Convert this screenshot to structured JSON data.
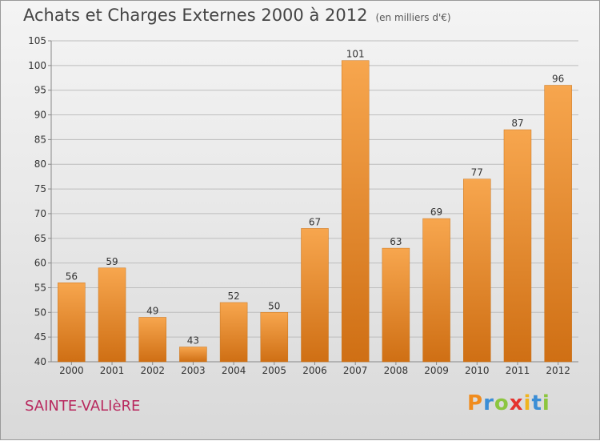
{
  "header": {
    "title": "Achats et Charges Externes 2000 à 2012",
    "subtitle": "(en milliers d'€)"
  },
  "footer": {
    "commune": "SAINTE-VALIèRE",
    "brand": {
      "letters": [
        "P",
        "r",
        "o",
        "x",
        "i",
        "t",
        "i"
      ],
      "colors": [
        "#f08c1e",
        "#3b8ed6",
        "#8cc63f",
        "#e5322e",
        "#f0b41e",
        "#3b8ed6",
        "#8cc63f"
      ]
    }
  },
  "colors": {
    "bar_light": "#f7a64e",
    "bar_dark": "#cf6f14",
    "axis_text": "#333333",
    "grid": "#bdbdbd"
  },
  "chart_data": {
    "type": "bar",
    "title": "Achats et Charges Externes 2000 à 2012",
    "subtitle": "(en milliers d'€)",
    "categories": [
      "2000",
      "2001",
      "2002",
      "2003",
      "2004",
      "2005",
      "2006",
      "2007",
      "2008",
      "2009",
      "2010",
      "2011",
      "2012"
    ],
    "values": [
      56,
      59,
      49,
      43,
      52,
      50,
      67,
      101,
      63,
      69,
      77,
      87,
      96
    ],
    "ylim": [
      40,
      105
    ],
    "yticks": [
      40,
      45,
      50,
      55,
      60,
      65,
      70,
      75,
      80,
      85,
      90,
      95,
      100,
      105
    ],
    "grid": true,
    "data_labels": true,
    "xlabel": "",
    "ylabel": ""
  }
}
